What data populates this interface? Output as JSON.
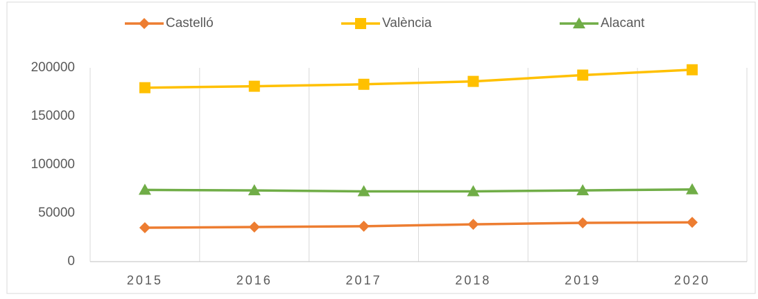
{
  "chart_data": {
    "type": "line",
    "categories": [
      "2015",
      "2016",
      "2017",
      "2018",
      "2019",
      "2020"
    ],
    "series": [
      {
        "name": "Castelló",
        "color": "#ed7d31",
        "marker": "diamond",
        "values": [
          35000,
          35700,
          36500,
          38500,
          40000,
          40500
        ]
      },
      {
        "name": "València",
        "color": "#ffc000",
        "marker": "square",
        "values": [
          179500,
          181000,
          183000,
          186000,
          192500,
          198000
        ]
      },
      {
        "name": "Alacant",
        "color": "#70ad47",
        "marker": "triangle",
        "values": [
          74000,
          73500,
          72500,
          72500,
          73500,
          74500
        ]
      }
    ],
    "ylim": [
      0,
      200000
    ],
    "yticks": [
      0,
      50000,
      100000,
      150000,
      200000
    ],
    "grid": "vertical",
    "legend": "top"
  }
}
